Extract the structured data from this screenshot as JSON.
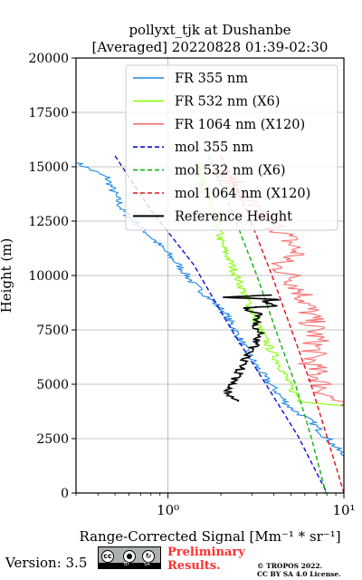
{
  "chart_data": {
    "type": "line",
    "title": "pollyxt_tjk at Dushanbe",
    "subtitle": "[Averaged] 20220828 01:39-02:30",
    "xlabel": "Range-Corrected Signal [Mm⁻¹ * sr⁻¹]",
    "ylabel": "Height (m)",
    "xscale": "log",
    "xlim": [
      0.3,
      10
    ],
    "ylim": [
      0,
      20000
    ],
    "x_ticks": [
      {
        "value": 1,
        "label": "10⁰"
      },
      {
        "value": 10,
        "label": "10¹"
      }
    ],
    "y_ticks": [
      0,
      2500,
      5000,
      7500,
      10000,
      12500,
      15000,
      17500,
      20000
    ],
    "grid": true,
    "legend_position": "top-right",
    "series": [
      {
        "name": "FR 355 nm",
        "color": "#1e88e5",
        "style": "solid",
        "noisy": true,
        "points": [
          [
            0.3,
            15200
          ],
          [
            0.45,
            14500
          ],
          [
            0.55,
            13000
          ],
          [
            0.75,
            12000
          ],
          [
            1.0,
            11000
          ],
          [
            1.2,
            10300
          ],
          [
            1.4,
            9600
          ],
          [
            1.7,
            9000
          ],
          [
            2.1,
            8300
          ],
          [
            2.4,
            7500
          ],
          [
            2.8,
            6500
          ],
          [
            3.4,
            5500
          ],
          [
            4.2,
            4600
          ],
          [
            5.0,
            3900
          ],
          [
            6.5,
            3300
          ],
          [
            10,
            1700
          ]
        ]
      },
      {
        "name": "FR 532 nm (X6)",
        "color": "#7fff00",
        "style": "solid",
        "noisy": true,
        "points": [
          [
            1.5,
            15200
          ],
          [
            1.6,
            14000
          ],
          [
            1.9,
            12500
          ],
          [
            2.0,
            11500
          ],
          [
            2.3,
            10500
          ],
          [
            2.6,
            9500
          ],
          [
            2.9,
            8700
          ],
          [
            3.2,
            7800
          ],
          [
            3.7,
            6800
          ],
          [
            4.4,
            5800
          ],
          [
            5.0,
            4800
          ],
          [
            5.8,
            4200
          ],
          [
            10,
            4000
          ]
        ]
      },
      {
        "name": "FR 1064 nm (X120)",
        "color": "#f87171",
        "style": "solid",
        "noisy": true,
        "points": [
          [
            1.8,
            15000
          ],
          [
            2.5,
            14000
          ],
          [
            3.0,
            13000
          ],
          [
            4.5,
            12000
          ],
          [
            5.5,
            11000
          ],
          [
            4.0,
            10500
          ],
          [
            5.0,
            10000
          ],
          [
            6.0,
            9000
          ],
          [
            6.5,
            8000
          ],
          [
            7.0,
            7000
          ],
          [
            6.5,
            6000
          ],
          [
            7.5,
            5000
          ],
          [
            8.0,
            4500
          ],
          [
            10,
            4000
          ]
        ]
      },
      {
        "name": "mol 355 nm",
        "color": "#1010d0",
        "style": "dashed",
        "points": [
          [
            0.5,
            15500
          ],
          [
            0.8,
            13000
          ],
          [
            1.4,
            10500
          ],
          [
            2.3,
            7500
          ],
          [
            3.6,
            5000
          ],
          [
            5.5,
            2600
          ],
          [
            8.0,
            0
          ]
        ]
      },
      {
        "name": "mol 532 nm (X6)",
        "color": "#10b010",
        "style": "dashed",
        "points": [
          [
            1.7,
            15500
          ],
          [
            2.3,
            13000
          ],
          [
            3.2,
            10000
          ],
          [
            4.3,
            7000
          ],
          [
            5.3,
            5000
          ],
          [
            6.5,
            2600
          ],
          [
            7.9,
            0
          ]
        ]
      },
      {
        "name": "mol 1064 nm (X120)",
        "color": "#e0101a",
        "style": "dashed",
        "points": [
          [
            2.0,
            15500
          ],
          [
            2.8,
            13000
          ],
          [
            3.9,
            10000
          ],
          [
            5.3,
            7000
          ],
          [
            6.5,
            5000
          ],
          [
            8.0,
            2600
          ],
          [
            10,
            0
          ]
        ]
      },
      {
        "name": "Reference Height",
        "color": "#000000",
        "style": "solid",
        "noisy": true,
        "points": [
          [
            2.4,
            4200
          ],
          [
            2.2,
            4700
          ],
          [
            2.4,
            5200
          ],
          [
            2.7,
            6000
          ],
          [
            3.1,
            6800
          ],
          [
            3.3,
            7300
          ],
          [
            3.1,
            7800
          ],
          [
            3.4,
            8200
          ],
          [
            2.7,
            8500
          ],
          [
            4.0,
            8600
          ],
          [
            3.5,
            8800
          ],
          [
            4.4,
            8900
          ],
          [
            2.0,
            9000
          ],
          [
            3.9,
            9100
          ]
        ]
      }
    ]
  },
  "footer": {
    "version": "Version: 3.5",
    "license_badge": {
      "icons": [
        "cc-icon",
        "by-icon",
        "sa-icon"
      ],
      "labels": [
        "BY",
        "SA"
      ]
    },
    "preliminary": [
      "Preliminary",
      "Results."
    ],
    "copyright": [
      "© TROPOS 2022.",
      "CC BY SA 4.0 License."
    ]
  }
}
